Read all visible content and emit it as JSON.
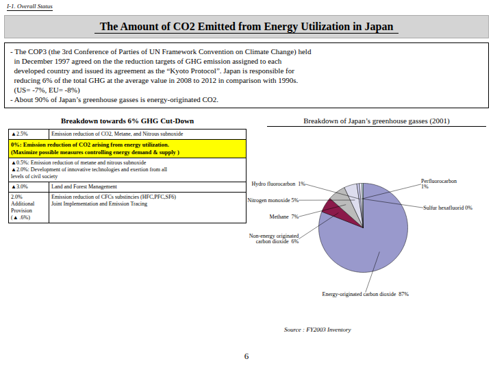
{
  "chart_data": {
    "type": "pie",
    "title": "The Amount of CO2 Emitted from Energy Utilization in Japan",
    "subtitle": "Breakdown of Japan’s greenhouse gasses (2001)",
    "categories": [
      "Energy-originated carbon dioxide  87%",
      "Non-energy originated\ncarbon dioxide  6%",
      "Methane  7%",
      "Nitrogen monoxide 5%",
      "Hydro fluorocarbon  1%",
      "Perfluorocarbon\n1%",
      "Sulfur hexafluorid 0%"
    ],
    "values": [
      87,
      6,
      7,
      5,
      1,
      1,
      0.5
    ],
    "colors": [
      "#9999cc",
      "#8b1a4a",
      "#bbbbbb",
      "#ddddee",
      "#ccccee",
      "#eeeeff",
      "#cceeee"
    ],
    "annotations": [
      "I-1. Overall Status",
      "- The COP3 (the 3rd Conference of Parties of UN Framework Convention on Climate Change) held",
      "  in December 1997 agreed on the the reduction targets of GHG emission assigned to each",
      "  developed country and issued its agreement as the “Kyoto Protocol”. Japan is responsible for",
      "  reducing 6% of the total GHG at the average value in 2008 to 2012 in comparison with 1990s.",
      "  (US= -7%, EU= -8%)",
      "- About 90% of Japan’s greenhouse gasses is energy-originated CO2.",
      "Breakdown towards 6% GHG Cut-Down",
      "▲2.5%",
      "Emission reduction of CO2, Metane, and Nitrous subnoxide",
      "0%: Emission reduction of CO2 arising from energy utilization.\n(Maximize possible measures controlling energy demand & supply )",
      "▲0.5%: Emission reduction of metane and nitrous subnoxide\n▲2.0%: Development of innovative technologies and exertion from all\nlevels of civil society",
      "▲3.0%",
      "Land and Forest Management",
      "2.0%\nAdditional\nProvision\n(▲ .6%)",
      "Emission reduction of CFCs substincies (HFC,PFC,SF6)\nJoint Implementation and Emission Tracing",
      "Source : FY2003 Inventory",
      "6"
    ]
  }
}
